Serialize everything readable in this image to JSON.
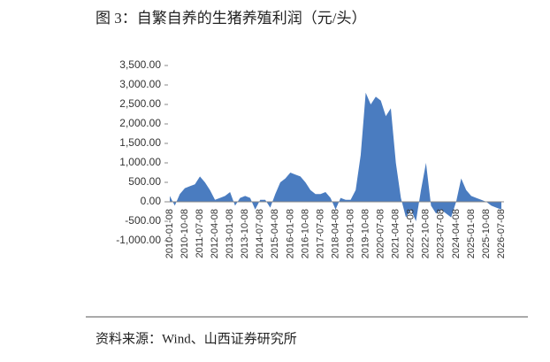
{
  "chart_data": {
    "type": "area",
    "title": "图 3：自繁自养的生猪养殖利润（元/头）",
    "source": "资料来源：Wind、山西证券研究所",
    "color": "#4a7cc0",
    "categories": [
      "2010-01-08",
      null,
      null,
      "2010-10-08",
      null,
      null,
      "2011-07-08",
      null,
      null,
      "2012-04-08",
      null,
      null,
      "2013-01-08",
      null,
      null,
      "2013-10-08",
      null,
      null,
      "2014-07-08",
      null,
      null,
      "2015-04-08",
      null,
      null,
      "2016-01-08",
      null,
      null,
      "2016-10-08",
      null,
      null,
      "2017-07-08",
      null,
      null,
      "2018-04-08",
      null,
      null,
      "2019-01-08",
      null,
      null,
      "2019-10-08",
      null,
      null,
      "2020-07-08",
      null,
      null,
      "2021-04-08",
      null,
      null,
      "2022-01-08",
      null,
      null,
      "2022-10-08",
      null,
      null,
      "2023-07-08",
      null,
      null,
      "2024-04-08",
      null,
      null,
      "2025-01-08",
      null,
      null,
      "2025-10-08",
      null,
      null,
      "2026-07-08"
    ],
    "values": [
      150,
      -100,
      200,
      350,
      400,
      450,
      650,
      500,
      300,
      50,
      100,
      150,
      250,
      -100,
      100,
      150,
      100,
      -200,
      50,
      50,
      -150,
      200,
      500,
      600,
      750,
      700,
      650,
      500,
      300,
      200,
      200,
      250,
      100,
      -200,
      100,
      50,
      50,
      300,
      1200,
      2800,
      2500,
      2700,
      2600,
      2200,
      2400,
      1000,
      100,
      -400,
      -200,
      -500,
      300,
      1000,
      -100,
      -300,
      -200,
      -300,
      -400,
      0,
      600,
      300,
      150,
      100,
      50,
      0,
      -100,
      -150,
      -200
    ],
    "ylim": [
      -1000,
      3500
    ],
    "yticks": [
      {
        "value": 3500,
        "label": "3,500.00"
      },
      {
        "value": 3000,
        "label": "3,000.00"
      },
      {
        "value": 2500,
        "label": "2,500.00"
      },
      {
        "value": 2000,
        "label": "2,000.00"
      },
      {
        "value": 1500,
        "label": "1,500.00"
      },
      {
        "value": 1000,
        "label": "1,000.00"
      },
      {
        "value": 500,
        "label": "500.00"
      },
      {
        "value": 0,
        "label": "0.00"
      },
      {
        "value": -500,
        "label": "-500.00"
      },
      {
        "value": -1000,
        "label": "-1,000.00"
      }
    ]
  }
}
